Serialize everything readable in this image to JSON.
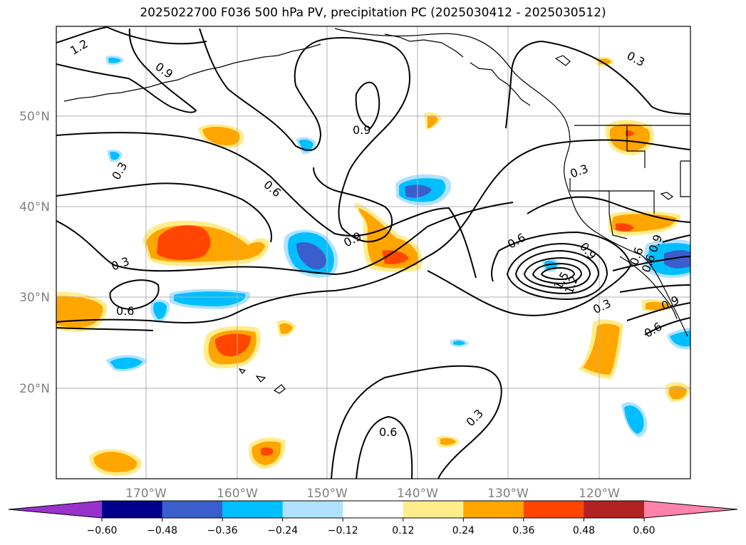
{
  "title": "2025022700 F036 500 hPa PV, precipitation PC (2025030412 - 2025030512)",
  "lon_labels": [
    "170°W",
    "160°W",
    "150°W",
    "140°W",
    "130°W",
    "120°W"
  ],
  "lat_labels": [
    "50°N",
    "40°N",
    "30°N",
    "20°N"
  ],
  "contour_labels": [
    "1.2",
    "0.9",
    "0.9",
    "0.3",
    "0.3",
    "0.6",
    "0.9",
    "0.3",
    "0.6",
    "0.6",
    "0.9",
    "0.6",
    "0.3",
    "0.6",
    "0.3",
    "1.5",
    "1.2",
    "0.9",
    "0.9",
    "0.6",
    "0.6",
    "0.3"
  ],
  "colorbar": {
    "tick_labels": [
      "−0.60",
      "−0.48",
      "−0.36",
      "−0.24",
      "−0.12",
      "0.12",
      "0.24",
      "0.36",
      "0.48",
      "0.60"
    ],
    "colors": [
      "#9932cc",
      "#00008b",
      "#3a5fcd",
      "#00bfff",
      "#b0e2ff",
      "#ffffff",
      "#ffec8b",
      "#ffa500",
      "#ff4500",
      "#b22222",
      "#ff82ab"
    ]
  },
  "colors": {
    "coast": "#000000",
    "grid": "#b0b0b0",
    "contour": "#000000"
  }
}
